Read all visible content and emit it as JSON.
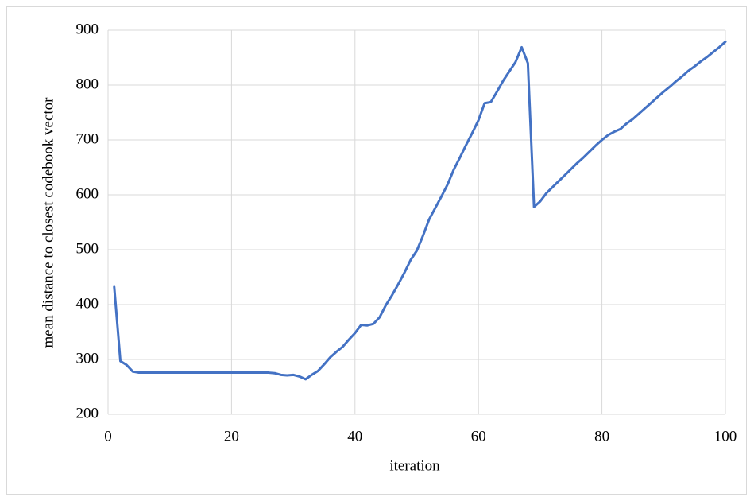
{
  "chart_data": {
    "type": "line",
    "x_label": "iteration",
    "y_label": "mean distance to closest codebook vector",
    "x": [
      1,
      2,
      3,
      4,
      5,
      6,
      7,
      8,
      9,
      10,
      11,
      12,
      13,
      14,
      15,
      16,
      17,
      18,
      19,
      20,
      21,
      22,
      23,
      24,
      25,
      26,
      27,
      28,
      29,
      30,
      31,
      32,
      33,
      34,
      35,
      36,
      37,
      38,
      39,
      40,
      41,
      42,
      43,
      44,
      45,
      46,
      47,
      48,
      49,
      50,
      51,
      52,
      53,
      54,
      55,
      56,
      57,
      58,
      59,
      60,
      61,
      62,
      63,
      64,
      65,
      66,
      67,
      68,
      69,
      70,
      71,
      72,
      73,
      74,
      75,
      76,
      77,
      78,
      79,
      80,
      81,
      82,
      83,
      84,
      85,
      86,
      87,
      88,
      89,
      90,
      91,
      92,
      93,
      94,
      95,
      96,
      97,
      98,
      99,
      100
    ],
    "series": [
      {
        "name": "mean distance",
        "color": "#4472c4",
        "values": [
          432,
          297,
          290,
          278,
          276,
          276,
          276,
          276,
          276,
          276,
          276,
          276,
          276,
          276,
          276,
          276,
          276,
          276,
          276,
          276,
          276,
          276,
          276,
          276,
          276,
          276,
          275,
          272,
          271,
          272,
          269,
          264,
          272,
          279,
          291,
          304,
          314,
          323,
          336,
          348,
          363,
          362,
          365,
          377,
          399,
          417,
          437,
          458,
          481,
          498,
          525,
          555,
          576,
          597,
          619,
          646,
          668,
          691,
          713,
          736,
          767,
          769,
          788,
          808,
          825,
          842,
          869,
          840,
          578,
          588,
          603,
          614,
          625,
          636,
          647,
          658,
          668,
          679,
          690,
          700,
          709,
          715,
          720,
          730,
          738,
          748,
          758,
          768,
          778,
          788,
          797,
          807,
          816,
          826,
          834,
          843,
          851,
          860,
          869,
          879
        ]
      }
    ],
    "xlim": [
      0,
      100
    ],
    "xticks": [
      0,
      20,
      40,
      60,
      80,
      100
    ],
    "ylim": [
      200,
      900
    ],
    "yticks": [
      200,
      300,
      400,
      500,
      600,
      700,
      800,
      900
    ],
    "grid": true
  }
}
